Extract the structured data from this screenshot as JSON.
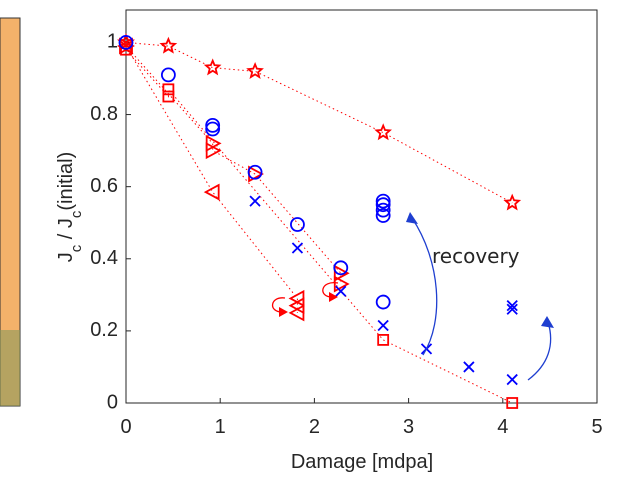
{
  "chart_data": {
    "type": "scatter",
    "xlabel": "Damage [mdpa]",
    "ylabel_runs": [
      "J",
      "c",
      " / J",
      "c",
      "(initial)"
    ],
    "annotation": "recovery",
    "annotation_color": "#1f3fd0",
    "xlim": [
      0,
      5
    ],
    "ylim": [
      0,
      1.09
    ],
    "xticks": [
      0,
      1,
      2,
      3,
      4,
      5
    ],
    "yticks": [
      0,
      0.2,
      0.4,
      0.6,
      0.8,
      1
    ],
    "series": [
      {
        "color": "#ff0000",
        "marker": "star",
        "line": true,
        "x": [
          0,
          0.45,
          0.92,
          1.37,
          2.73,
          4.1
        ],
        "values": [
          1.0,
          0.99,
          0.93,
          0.92,
          0.75,
          0.555
        ]
      },
      {
        "color": "#ff0000",
        "marker": "square",
        "line": true,
        "x": [
          0,
          0.45,
          0.45,
          2.73,
          4.1
        ],
        "values": [
          0.98,
          0.85,
          0.87,
          0.175,
          0.0
        ]
      },
      {
        "color": "#ff0000",
        "marker": "triangle-right",
        "line": true,
        "x": [
          0,
          0.92,
          0.92,
          1.37,
          2.28,
          2.28
        ],
        "values": [
          0.99,
          0.72,
          0.7,
          0.635,
          0.36,
          0.33
        ]
      },
      {
        "color": "#ff0000",
        "marker": "triangle-left",
        "line": true,
        "x": [
          0,
          0.92,
          1.82,
          1.82,
          1.82
        ],
        "values": [
          0.99,
          0.585,
          0.29,
          0.27,
          0.25
        ]
      },
      {
        "color": "#0000ff",
        "marker": "circle",
        "line": false,
        "x": [
          0,
          0.45,
          0.92,
          0.92,
          1.37,
          1.82,
          2.28,
          2.73,
          2.73,
          2.73,
          2.73,
          2.73
        ],
        "values": [
          1.0,
          0.91,
          0.77,
          0.76,
          0.64,
          0.495,
          0.375,
          0.28,
          0.56,
          0.55,
          0.535,
          0.52
        ]
      },
      {
        "color": "#0000ff",
        "marker": "x",
        "line": false,
        "x": [
          1.37,
          1.82,
          2.28,
          2.73,
          3.19,
          3.64,
          4.1,
          4.1,
          4.1
        ],
        "values": [
          0.56,
          0.43,
          0.31,
          0.215,
          0.15,
          0.1,
          0.065,
          0.27,
          0.26
        ]
      }
    ]
  }
}
